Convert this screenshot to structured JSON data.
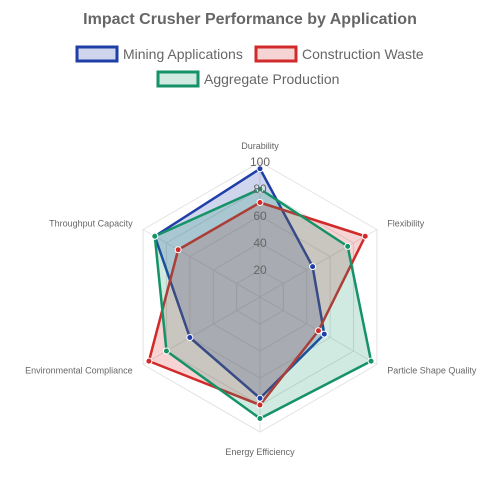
{
  "chart_data": {
    "type": "radar",
    "title": "Impact Crusher Performance by Application",
    "axes": [
      "Durability",
      "Flexibility",
      "Particle Shape Quality",
      "Energy Efficiency",
      "Environmental Compliance",
      "Throughput Capacity"
    ],
    "rlim": [
      0,
      100
    ],
    "ticks": [
      "20",
      "40",
      "60",
      "80",
      "100"
    ],
    "grid": true,
    "legend_position": "top",
    "series": [
      {
        "name": "Mining Applications",
        "values": [
          95,
          45,
          55,
          75,
          60,
          90
        ],
        "color": "#1f3fa8",
        "fill": "rgba(31,63,168,0.22)"
      },
      {
        "name": "Construction Waste",
        "values": [
          70,
          90,
          50,
          80,
          95,
          70
        ],
        "color": "#d12a2a",
        "fill": "rgba(209,42,42,0.20)"
      },
      {
        "name": "Aggregate Production",
        "values": [
          80,
          75,
          95,
          90,
          80,
          90
        ],
        "color": "#159267",
        "fill": "rgba(21,146,103,0.20)"
      }
    ]
  }
}
